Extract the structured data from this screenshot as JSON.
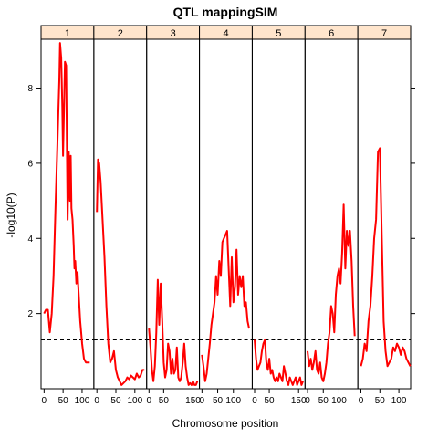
{
  "chart_data": {
    "type": "line",
    "title": "QTL mappingSIM",
    "xlabel": "Chromosome position",
    "ylabel": "-log10(P)",
    "ylim": [
      0,
      9.3
    ],
    "yticks": [
      2,
      4,
      6,
      8
    ],
    "threshold": 1.3,
    "line_color": "#ff0000",
    "strip_color": "#ffe5cc",
    "panels": [
      {
        "name": "1",
        "xlim": [
          -8,
          131
        ],
        "xticks": [
          0,
          50,
          100
        ],
        "x": [
          0,
          5,
          10,
          15,
          20,
          25,
          30,
          35,
          40,
          42,
          45,
          48,
          50,
          55,
          58,
          60,
          62,
          65,
          68,
          70,
          72,
          75,
          78,
          80,
          82,
          85,
          88,
          90,
          95,
          100,
          105,
          110,
          115,
          120
        ],
        "y": [
          2.0,
          2.1,
          2.1,
          1.5,
          2.0,
          3.0,
          4.8,
          6.5,
          8.2,
          9.2,
          8.8,
          7.5,
          6.2,
          8.7,
          8.6,
          6.5,
          4.5,
          6.3,
          5.0,
          6.2,
          4.8,
          4.5,
          3.8,
          3.2,
          3.4,
          2.8,
          3.1,
          2.7,
          1.8,
          1.2,
          0.8,
          0.7,
          0.7,
          0.7
        ]
      },
      {
        "name": "2",
        "xlim": [
          -8,
          131
        ],
        "xticks": [
          0,
          50,
          100
        ],
        "x": [
          0,
          3,
          6,
          10,
          15,
          20,
          25,
          30,
          35,
          40,
          45,
          50,
          55,
          60,
          65,
          70,
          75,
          80,
          85,
          90,
          95,
          100,
          105,
          110,
          115,
          120,
          125
        ],
        "y": [
          4.7,
          6.1,
          6.0,
          5.5,
          4.5,
          3.5,
          2.2,
          1.2,
          0.7,
          0.8,
          1.0,
          0.5,
          0.3,
          0.2,
          0.1,
          0.15,
          0.2,
          0.3,
          0.25,
          0.35,
          0.3,
          0.25,
          0.4,
          0.3,
          0.35,
          0.5,
          0.5
        ]
      },
      {
        "name": "3",
        "xlim": [
          -8,
          172
        ],
        "xticks": [
          0,
          50,
          150
        ],
        "x": [
          0,
          5,
          10,
          15,
          20,
          25,
          30,
          35,
          40,
          45,
          50,
          55,
          60,
          65,
          70,
          75,
          80,
          85,
          90,
          95,
          100,
          105,
          110,
          115,
          120,
          125,
          130,
          135,
          140,
          145,
          150,
          155,
          160,
          165
        ],
        "y": [
          1.6,
          1.1,
          0.5,
          0.2,
          0.6,
          1.5,
          2.9,
          1.7,
          2.8,
          1.8,
          0.7,
          0.3,
          0.5,
          1.2,
          1.0,
          0.4,
          0.8,
          0.4,
          0.5,
          1.1,
          0.3,
          0.2,
          0.3,
          0.7,
          1.2,
          0.6,
          0.3,
          0.1,
          0.15,
          0.1,
          0.2,
          0.1,
          0.1,
          0.2
        ]
      },
      {
        "name": "4",
        "xlim": [
          -8,
          160
        ],
        "xticks": [
          0,
          50,
          100
        ],
        "x": [
          0,
          5,
          10,
          15,
          20,
          25,
          30,
          35,
          40,
          45,
          50,
          55,
          60,
          65,
          70,
          75,
          80,
          85,
          90,
          95,
          100,
          105,
          110,
          115,
          120,
          125,
          130,
          135,
          140,
          145,
          150
        ],
        "y": [
          0.9,
          0.6,
          0.2,
          0.4,
          0.8,
          1.2,
          1.7,
          2.0,
          2.3,
          3.0,
          2.5,
          3.4,
          3.0,
          3.9,
          4.0,
          4.1,
          4.2,
          3.2,
          2.2,
          3.5,
          2.3,
          2.7,
          3.7,
          2.5,
          3.0,
          2.7,
          3.0,
          2.2,
          2.3,
          1.8,
          1.6
        ]
      },
      {
        "name": "5",
        "xlim": [
          -8,
          172
        ],
        "xticks": [
          0,
          50,
          150
        ],
        "x": [
          0,
          5,
          10,
          15,
          20,
          25,
          30,
          35,
          40,
          45,
          50,
          55,
          60,
          65,
          70,
          75,
          80,
          85,
          90,
          95,
          100,
          105,
          110,
          115,
          120,
          125,
          130,
          135,
          140,
          145,
          150,
          155,
          160,
          165
        ],
        "y": [
          1.3,
          0.8,
          0.5,
          0.6,
          0.7,
          1.0,
          1.2,
          1.3,
          0.7,
          0.5,
          0.8,
          0.4,
          0.5,
          0.3,
          0.2,
          0.3,
          0.2,
          0.4,
          0.3,
          0.2,
          0.6,
          0.4,
          0.2,
          0.1,
          0.3,
          0.2,
          0.1,
          0.2,
          0.3,
          0.1,
          0.2,
          0.3,
          0.1,
          0.2
        ]
      },
      {
        "name": "6",
        "xlim": [
          -8,
          160
        ],
        "xticks": [
          0,
          50,
          100
        ],
        "x": [
          0,
          5,
          10,
          15,
          20,
          25,
          30,
          35,
          40,
          45,
          50,
          55,
          60,
          65,
          70,
          75,
          80,
          85,
          90,
          95,
          100,
          105,
          110,
          115,
          120,
          125,
          130,
          135,
          140,
          145,
          150
        ],
        "y": [
          1.0,
          0.6,
          0.8,
          0.5,
          0.7,
          1.0,
          0.5,
          0.4,
          0.7,
          0.3,
          0.2,
          0.4,
          0.7,
          1.2,
          1.5,
          2.2,
          2.0,
          1.5,
          2.5,
          3.0,
          3.2,
          2.8,
          3.6,
          4.9,
          3.2,
          4.2,
          3.8,
          4.2,
          3.4,
          2.2,
          1.4
        ]
      },
      {
        "name": "7",
        "xlim": [
          -8,
          131
        ],
        "xticks": [
          0,
          50,
          100
        ],
        "x": [
          0,
          5,
          10,
          15,
          20,
          25,
          30,
          35,
          40,
          45,
          50,
          55,
          60,
          65,
          70,
          75,
          80,
          85,
          90,
          95,
          100,
          105,
          110,
          115,
          120,
          125,
          130
        ],
        "y": [
          0.6,
          0.8,
          1.2,
          1.0,
          1.8,
          2.2,
          3.0,
          4.0,
          4.5,
          6.3,
          6.4,
          4.0,
          1.8,
          1.0,
          0.6,
          0.7,
          0.8,
          1.1,
          1.0,
          1.2,
          1.1,
          0.9,
          1.1,
          1.0,
          0.8,
          0.7,
          0.6
        ]
      }
    ]
  }
}
